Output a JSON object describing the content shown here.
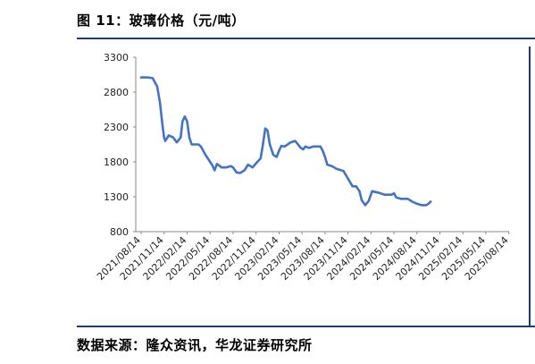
{
  "figure": {
    "title": "图 11：玻璃价格（元/吨）",
    "source": "数据来源：隆众资讯，华龙证券研究所"
  },
  "chart_data": {
    "type": "line",
    "title": "",
    "xlabel": "",
    "ylabel": "",
    "ylim": [
      800,
      3300
    ],
    "y_ticks": [
      "3300",
      "2800",
      "2300",
      "1800",
      "1300",
      "800"
    ],
    "x_tick_labels": [
      "2021/08/14",
      "2021/11/14",
      "2022/02/14",
      "2022/05/14",
      "2022/08/14",
      "2022/11/14",
      "2023/02/14",
      "2023/05/14",
      "2023/08/14",
      "2023/11/14",
      "2024/02/14",
      "2024/05/14",
      "2024/08/14",
      "2024/11/14",
      "2025/02/14",
      "2025/05/14",
      "2025/08/14"
    ],
    "grid": false,
    "legend": "none",
    "series_color": "#4472c4",
    "series": [
      {
        "values": [
          [
            0,
            3010
          ],
          [
            0.3,
            3010
          ],
          [
            0.5,
            3000
          ],
          [
            0.7,
            2880
          ],
          [
            0.82,
            2650
          ],
          [
            0.92,
            2350
          ],
          [
            1.0,
            2150
          ],
          [
            1.05,
            2100
          ],
          [
            1.2,
            2180
          ],
          [
            1.4,
            2150
          ],
          [
            1.55,
            2080
          ],
          [
            1.72,
            2150
          ],
          [
            1.8,
            2380
          ],
          [
            1.9,
            2450
          ],
          [
            2.0,
            2380
          ],
          [
            2.1,
            2150
          ],
          [
            2.2,
            2050
          ],
          [
            2.5,
            2050
          ],
          [
            2.6,
            2020
          ],
          [
            2.8,
            1900
          ],
          [
            3.0,
            1800
          ],
          [
            3.1,
            1750
          ],
          [
            3.2,
            1680
          ],
          [
            3.3,
            1770
          ],
          [
            3.5,
            1720
          ],
          [
            3.7,
            1720
          ],
          [
            3.9,
            1740
          ],
          [
            4.0,
            1720
          ],
          [
            4.15,
            1650
          ],
          [
            4.3,
            1640
          ],
          [
            4.5,
            1680
          ],
          [
            4.65,
            1760
          ],
          [
            4.85,
            1720
          ],
          [
            5.0,
            1780
          ],
          [
            5.2,
            1850
          ],
          [
            5.3,
            2050
          ],
          [
            5.4,
            2280
          ],
          [
            5.5,
            2250
          ],
          [
            5.6,
            2050
          ],
          [
            5.75,
            1900
          ],
          [
            5.9,
            1870
          ],
          [
            6.0,
            1960
          ],
          [
            6.1,
            2030
          ],
          [
            6.25,
            2020
          ],
          [
            6.5,
            2080
          ],
          [
            6.7,
            2100
          ],
          [
            6.8,
            2060
          ],
          [
            6.95,
            2000
          ],
          [
            7.05,
            1980
          ],
          [
            7.15,
            2020
          ],
          [
            7.3,
            2000
          ],
          [
            7.5,
            2020
          ],
          [
            7.8,
            2020
          ],
          [
            7.9,
            1960
          ],
          [
            8.0,
            1870
          ],
          [
            8.1,
            1760
          ],
          [
            8.3,
            1740
          ],
          [
            8.5,
            1700
          ],
          [
            8.8,
            1670
          ],
          [
            9.0,
            1560
          ],
          [
            9.2,
            1450
          ],
          [
            9.35,
            1450
          ],
          [
            9.5,
            1380
          ],
          [
            9.6,
            1250
          ],
          [
            9.75,
            1180
          ],
          [
            9.9,
            1240
          ],
          [
            10.05,
            1380
          ],
          [
            10.3,
            1360
          ],
          [
            10.6,
            1330
          ],
          [
            10.9,
            1330
          ],
          [
            11.0,
            1350
          ],
          [
            11.1,
            1290
          ],
          [
            11.3,
            1270
          ],
          [
            11.6,
            1270
          ],
          [
            11.8,
            1230
          ],
          [
            12.0,
            1200
          ],
          [
            12.2,
            1180
          ],
          [
            12.4,
            1180
          ],
          [
            12.5,
            1200
          ],
          [
            12.6,
            1230
          ]
        ]
      }
    ]
  }
}
